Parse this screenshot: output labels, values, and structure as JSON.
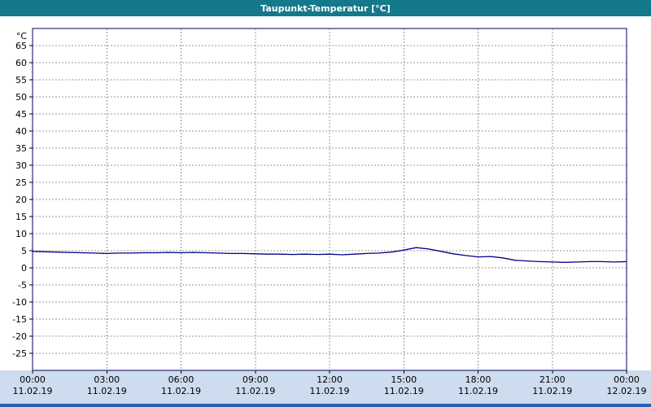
{
  "window": {
    "title": "Taupunkt-Temperatur [°C]"
  },
  "chart_data": {
    "type": "line",
    "title": "Taupunkt-Temperatur [°C]",
    "series_name": "Taupunkt-Temperatur",
    "y_unit_label": "°C",
    "ylim": [
      -30,
      70
    ],
    "y_ticks": [
      65,
      60,
      55,
      50,
      45,
      40,
      35,
      30,
      25,
      20,
      15,
      10,
      5,
      0,
      -5,
      -10,
      -15,
      -20,
      -25
    ],
    "xlim": [
      0,
      24
    ],
    "xtick_step_hours": 3,
    "x_tick_times": [
      "00:00",
      "03:00",
      "06:00",
      "09:00",
      "12:00",
      "15:00",
      "18:00",
      "21:00",
      "00:00"
    ],
    "x_tick_dates": [
      "11.02.19",
      "11.02.19",
      "11.02.19",
      "11.02.19",
      "11.02.19",
      "11.02.19",
      "11.02.19",
      "11.02.19",
      "12.02.19"
    ],
    "grid": true,
    "x_hours": [
      0,
      0.5,
      1,
      1.5,
      2,
      2.5,
      3,
      3.5,
      4,
      4.5,
      5,
      5.5,
      6,
      6.5,
      7,
      7.5,
      8,
      8.5,
      9,
      9.5,
      10,
      10.5,
      11,
      11.5,
      12,
      12.5,
      13,
      13.5,
      14,
      14.5,
      15,
      15.5,
      16,
      16.5,
      17,
      17.5,
      18,
      18.5,
      19,
      19.5,
      20,
      20.5,
      21,
      21.5,
      22,
      22.5,
      23,
      23.5,
      24
    ],
    "values": [
      4.8,
      4.7,
      4.6,
      4.5,
      4.4,
      4.3,
      4.2,
      4.3,
      4.3,
      4.4,
      4.4,
      4.5,
      4.4,
      4.5,
      4.4,
      4.3,
      4.2,
      4.2,
      4.1,
      4.0,
      4.0,
      3.9,
      4.0,
      3.9,
      4.0,
      3.8,
      4.0,
      4.2,
      4.3,
      4.6,
      5.2,
      5.9,
      5.5,
      4.8,
      4.1,
      3.6,
      3.2,
      3.3,
      2.9,
      2.2,
      2.0,
      1.8,
      1.7,
      1.6,
      1.7,
      1.8,
      1.8,
      1.7,
      1.8
    ],
    "line_color": "#00008b",
    "colors": {
      "titlebar_bg": "#13798b",
      "titlebar_text": "#ffffff",
      "plot_border": "#000066",
      "grid": "#999999",
      "label_strip_bg": "#cddcee",
      "bottom_bar": "#2b5fb4"
    }
  }
}
